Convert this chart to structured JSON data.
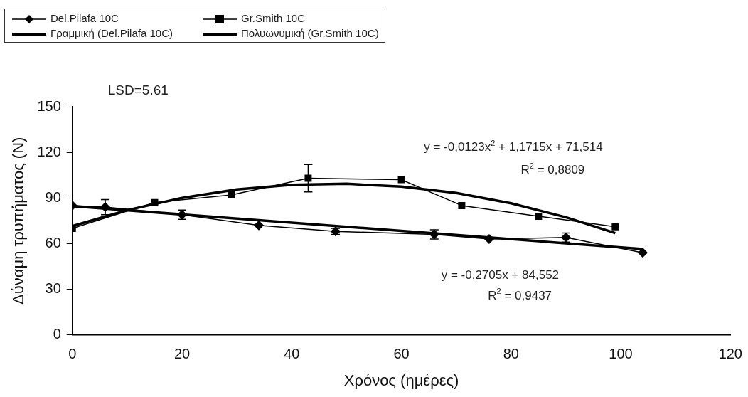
{
  "chart_data": {
    "type": "line",
    "xlabel": "Χρόνος (ημέρες)",
    "ylabel": "Δύναμη τρυπήματος (N)",
    "xlim": [
      0,
      120
    ],
    "xticks": [
      0,
      20,
      40,
      60,
      80,
      100,
      120
    ],
    "ylim": [
      0,
      150
    ],
    "yticks": [
      0,
      30,
      60,
      90,
      120,
      150
    ],
    "grid": false,
    "legend": "top left",
    "line_style": "solid",
    "annotations": [
      "LSD=5.61",
      "y = -0,0123x$^{2}$ + 1,1715x + 71,514",
      "R$^{2}$ = 0,8809",
      "y = -0,2705x + 84,552",
      "R$^{2}$ = 0,9437"
    ],
    "series": [
      {
        "name": "Del.Pilafa 10C",
        "color": "#000000",
        "marker": "diamond",
        "x": [
          0,
          6,
          20,
          34,
          48,
          66,
          76,
          90,
          104
        ],
        "values": [
          85,
          84,
          79,
          72,
          68,
          66,
          63,
          64,
          54
        ],
        "errors": [
          null,
          5,
          3,
          null,
          2,
          3,
          null,
          3,
          null
        ]
      },
      {
        "name": "Gr.Smith 10C",
        "color": "#000000",
        "marker": "square",
        "x": [
          0,
          15,
          29,
          43,
          60,
          71,
          85,
          99
        ],
        "values": [
          70,
          87,
          92,
          103,
          102,
          85,
          78,
          71
        ],
        "errors": [
          null,
          null,
          null,
          9,
          null,
          null,
          null,
          null
        ]
      },
      {
        "name": "Γραμμική (Del.Pilafa 10C)",
        "color": "#000000",
        "marker": "none",
        "x": [
          0,
          104
        ],
        "values": [
          84.6,
          56.4
        ]
      },
      {
        "name": "Πολυωνυμική (Gr.Smith 10C)",
        "color": "#000000",
        "marker": "none",
        "x": [
          0,
          10,
          20,
          30,
          40,
          50,
          60,
          70,
          80,
          90,
          99
        ],
        "values": [
          71.5,
          82.0,
          90.0,
          95.6,
          98.7,
          99.3,
          97.5,
          93.3,
          86.5,
          77.3,
          66.9
        ]
      }
    ]
  }
}
